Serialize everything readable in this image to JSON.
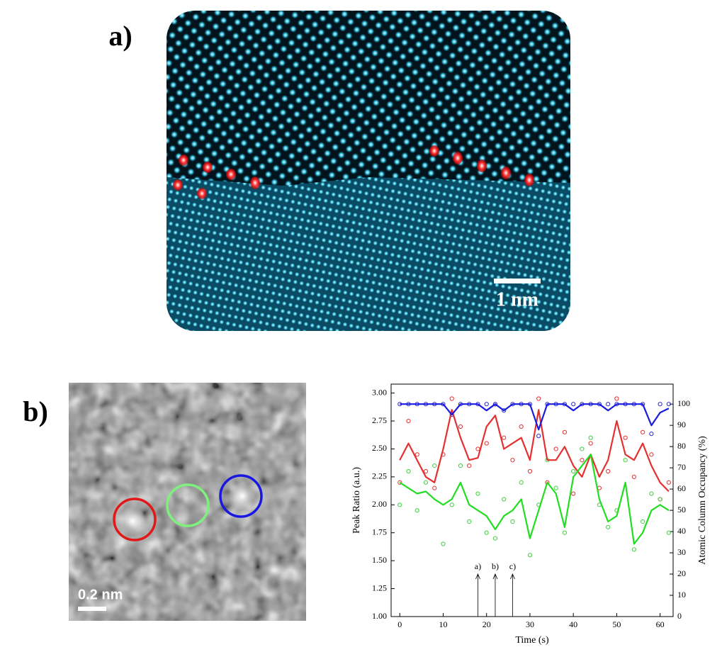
{
  "panel_a": {
    "label": "a)",
    "scale_bar": "1 nm"
  },
  "panel_b": {
    "label": "b)",
    "scale_bar": "0.2 nm"
  },
  "chart_data": {
    "type": "line",
    "x_label": "Time (s)",
    "y_label": "Peak Ratio (a.u.)",
    "y2_label": "Atomic Column Occupancy (%)",
    "x": [
      0,
      2,
      4,
      6,
      8,
      10,
      12,
      14,
      16,
      18,
      20,
      22,
      24,
      26,
      28,
      30,
      32,
      34,
      36,
      38,
      40,
      42,
      44,
      46,
      48,
      50,
      52,
      54,
      56,
      58,
      60,
      62
    ],
    "xlim": [
      -2,
      63
    ],
    "xticks": [
      0,
      10,
      20,
      30,
      40,
      50,
      60
    ],
    "ylim": [
      1.0,
      3.08
    ],
    "yticks": [
      {
        "value": 1,
        "label": "1.00"
      },
      {
        "value": 1.25,
        "label": "1.25"
      },
      {
        "value": 1.5,
        "label": "1.50"
      },
      {
        "value": 1.75,
        "label": "1.75"
      },
      {
        "value": 2,
        "label": "2.00"
      },
      {
        "value": 2.25,
        "label": "2.25"
      },
      {
        "value": 2.5,
        "label": "2.50"
      },
      {
        "value": 2.75,
        "label": "2.75"
      },
      {
        "value": 3,
        "label": "3.00"
      }
    ],
    "y2lim": [
      0,
      109.4
    ],
    "y2ticks": [
      0,
      10,
      20,
      30,
      40,
      50,
      60,
      70,
      80,
      90,
      100
    ],
    "series": [
      {
        "color": "#e53030",
        "mode": "markers",
        "values": [
          2.2,
          2.75,
          2.45,
          2.3,
          2.15,
          2.45,
          2.95,
          2.7,
          2.35,
          2.5,
          2.55,
          2.9,
          2.6,
          2.4,
          2.7,
          2.3,
          2.95,
          2.2,
          2.5,
          2.65,
          2.1,
          2.4,
          2.55,
          2.15,
          2.3,
          2.95,
          2.6,
          2.25,
          2.65,
          2.45,
          2.05,
          2.2
        ]
      },
      {
        "color": "#3ed03e",
        "mode": "markers",
        "values": [
          2.0,
          2.3,
          1.95,
          2.2,
          2.35,
          1.65,
          2.0,
          2.35,
          1.85,
          2.1,
          1.75,
          1.7,
          2.05,
          1.85,
          2.2,
          1.55,
          2.0,
          2.4,
          2.15,
          1.75,
          2.3,
          2.5,
          2.6,
          2.0,
          1.8,
          1.95,
          2.4,
          1.6,
          1.85,
          2.1,
          2.05,
          1.75
        ]
      },
      {
        "color": "#2a2ad8",
        "mode": "markers",
        "axis": "y2",
        "values": [
          100,
          100,
          100,
          100,
          100,
          100,
          95,
          100,
          100,
          100,
          100,
          100,
          97,
          100,
          100,
          100,
          85,
          100,
          100,
          100,
          100,
          100,
          100,
          100,
          100,
          100,
          100,
          100,
          100,
          86,
          100,
          100
        ]
      },
      {
        "color": "#e53030",
        "mode": "line",
        "values": [
          2.4,
          2.55,
          2.4,
          2.25,
          2.2,
          2.5,
          2.85,
          2.6,
          2.4,
          2.42,
          2.7,
          2.8,
          2.5,
          2.55,
          2.6,
          2.4,
          2.85,
          2.4,
          2.4,
          2.52,
          2.35,
          2.25,
          2.45,
          2.25,
          2.4,
          2.75,
          2.45,
          2.4,
          2.55,
          2.35,
          2.2,
          2.12
        ]
      },
      {
        "color": "#22dd22",
        "mode": "line",
        "values": [
          2.2,
          2.15,
          2.1,
          2.12,
          2.05,
          2.0,
          2.05,
          2.2,
          2.0,
          1.95,
          1.9,
          1.78,
          1.9,
          1.95,
          2.05,
          1.7,
          1.95,
          2.2,
          2.1,
          1.8,
          2.25,
          2.35,
          2.45,
          2.05,
          1.85,
          1.9,
          2.2,
          1.65,
          1.75,
          1.95,
          2.0,
          1.95
        ]
      },
      {
        "color": "#1a1ae0",
        "mode": "line",
        "axis": "y2",
        "values": [
          100,
          100,
          100,
          100,
          100,
          100,
          95,
          100,
          100,
          100,
          97,
          100,
          97,
          100,
          100,
          100,
          88,
          100,
          100,
          100,
          97,
          100,
          100,
          100,
          97,
          100,
          100,
          100,
          100,
          90,
          96,
          98
        ]
      }
    ],
    "annotations": [
      {
        "text": "a)",
        "x": 18
      },
      {
        "text": "b)",
        "x": 22
      },
      {
        "text": "c)",
        "x": 26
      }
    ]
  }
}
